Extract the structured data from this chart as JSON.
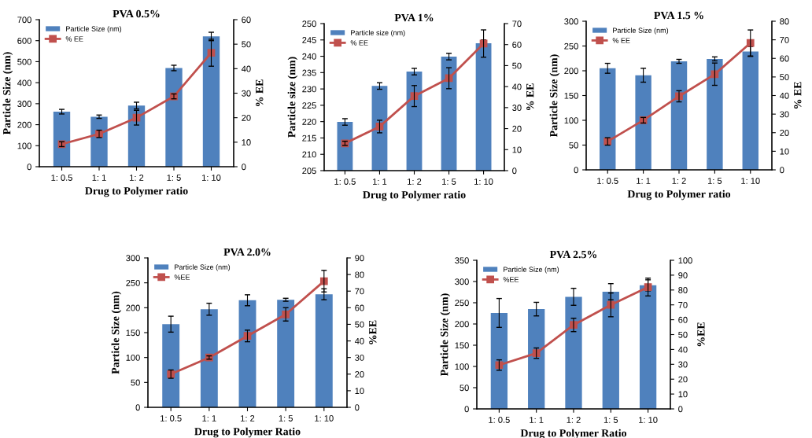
{
  "chart_data": [
    {
      "type": "bar",
      "title": "PVA 0.5%",
      "xlabel": "Drug to Polymer ratio",
      "ylabel": "Particle Size (nm)",
      "y2label": "% EE",
      "categories": [
        "1: 0.5",
        "1: 1",
        "1: 2",
        "1: 5",
        "1: 10"
      ],
      "ylim": [
        0,
        700
      ],
      "yticks": [
        0,
        100,
        200,
        300,
        400,
        500,
        600,
        700
      ],
      "y2lim": [
        0,
        60
      ],
      "y2ticks": [
        0,
        10,
        20,
        30,
        40,
        50,
        60
      ],
      "legend": "top left",
      "marker": "square",
      "series": [
        {
          "name": "Particle Size (nm)",
          "color": "#4f81bd",
          "values": [
            262,
            238,
            291,
            470,
            620
          ],
          "errors": [
            11,
            8,
            16,
            13,
            20
          ]
        },
        {
          "name": "% EE",
          "type": "line",
          "axis": "y2",
          "color": "#c0504d",
          "values": [
            9.2,
            13.4,
            20,
            28.7,
            46.5
          ],
          "errors": [
            1,
            1.5,
            3,
            1,
            5.5
          ]
        }
      ]
    },
    {
      "type": "bar",
      "title": "PVA 1%",
      "xlabel": "Drug to Polymer ratio",
      "ylabel": "Particle size (nm)",
      "y2label": "% EE",
      "categories": [
        "1: 0.5",
        "1: 1",
        "1: 2",
        "1: 5",
        "1: 10"
      ],
      "ylim": [
        205,
        250
      ],
      "yticks": [
        205,
        210,
        215,
        220,
        225,
        230,
        235,
        240,
        245,
        250
      ],
      "y2lim": [
        0,
        70
      ],
      "y2ticks": [
        0,
        10,
        20,
        30,
        40,
        50,
        60,
        70
      ],
      "legend": "top left",
      "marker": "square",
      "series": [
        {
          "name": "Particle size (nm)",
          "color": "#4f81bd",
          "values": [
            219.9,
            230.9,
            235.3,
            239.9,
            244
          ],
          "errors": [
            1,
            1,
            1,
            1,
            1
          ]
        },
        {
          "name": "% EE",
          "type": "line",
          "axis": "y2",
          "color": "#c0504d",
          "values": [
            13,
            21,
            35.5,
            44,
            60.5
          ],
          "errors": [
            1,
            3,
            5,
            5,
            6.5
          ]
        }
      ]
    },
    {
      "type": "bar",
      "title": "PVA 1.5 %",
      "xlabel": "Drug to Polymer ratio",
      "ylabel": "Particle Size (nm)",
      "y2label": "% EE",
      "categories": [
        "1: 0.5",
        "1: 1",
        "1: 2",
        "1: 5",
        "1: 10"
      ],
      "ylim": [
        0,
        300
      ],
      "yticks": [
        0,
        50,
        100,
        150,
        200,
        250,
        300
      ],
      "y2lim": [
        0,
        80
      ],
      "y2ticks": [
        0,
        10,
        20,
        30,
        40,
        50,
        60,
        70,
        80
      ],
      "legend": "top left",
      "marker": "square",
      "series": [
        {
          "name": "Particle Size (nm)",
          "color": "#4f81bd",
          "values": [
            205,
            191,
            219,
            224,
            239
          ],
          "errors": [
            10,
            14,
            4,
            4,
            10
          ]
        },
        {
          "name": "% EE",
          "type": "line",
          "axis": "y2",
          "color": "#c0504d",
          "values": [
            15.3,
            26.7,
            39.6,
            51.5,
            68.3
          ],
          "errors": [
            2,
            1.5,
            3,
            6,
            7
          ]
        }
      ]
    },
    {
      "type": "bar",
      "title": "PVA 2.0%",
      "xlabel": "Drug to Polymer Ratio",
      "ylabel": "Particle Size (nm)",
      "y2label": "%EE",
      "categories": [
        "1: 0.5",
        "1: 1",
        "1: 2",
        "1: 5",
        "1: 10"
      ],
      "ylim": [
        0,
        300
      ],
      "yticks": [
        0,
        50,
        100,
        150,
        200,
        250,
        300
      ],
      "y2lim": [
        0,
        90
      ],
      "y2ticks": [
        0,
        10,
        20,
        30,
        40,
        50,
        60,
        70,
        80,
        90
      ],
      "legend": "top left",
      "marker": "square",
      "series": [
        {
          "name": "Particle Size (nm)",
          "color": "#4f81bd",
          "values": [
            167,
            197,
            215,
            216,
            227
          ],
          "errors": [
            16,
            12,
            11,
            3,
            11
          ]
        },
        {
          "name": "%EE",
          "type": "line",
          "axis": "y2",
          "color": "#c0504d",
          "values": [
            20,
            30,
            43,
            56,
            76
          ],
          "errors": [
            2.5,
            1,
            3.5,
            4,
            6.5
          ]
        }
      ]
    },
    {
      "type": "bar",
      "title": "PVA 2.5%",
      "xlabel": "Drug to Polymer Ratio",
      "ylabel": "Particle Size (nm)",
      "y2label": "%EE",
      "categories": [
        "1: 0.5",
        "1: 1",
        "1: 2",
        "1: 5",
        "1: 10"
      ],
      "ylim": [
        0,
        350
      ],
      "yticks": [
        0,
        50,
        100,
        150,
        200,
        250,
        300,
        350
      ],
      "y2lim": [
        0,
        100
      ],
      "y2ticks": [
        0,
        10,
        20,
        30,
        40,
        50,
        60,
        70,
        80,
        90,
        100
      ],
      "legend": "top left",
      "marker": "square",
      "series": [
        {
          "name": "Particle Size (nm)",
          "color": "#4f81bd",
          "values": [
            226,
            235,
            264,
            276,
            291
          ],
          "errors": [
            34,
            16,
            20,
            19,
            13
          ]
        },
        {
          "name": "%EE",
          "type": "line",
          "axis": "y2",
          "color": "#c0504d",
          "values": [
            29.5,
            37.5,
            56.5,
            70,
            82
          ],
          "errors": [
            3.5,
            3.5,
            4.5,
            8,
            6
          ]
        }
      ]
    }
  ]
}
